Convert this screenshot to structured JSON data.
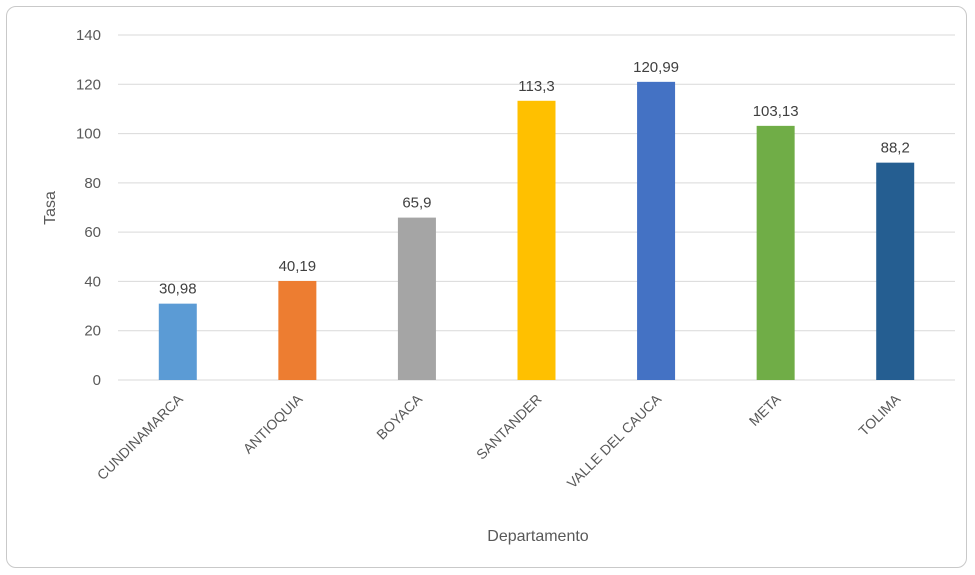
{
  "chart_data": {
    "type": "bar",
    "categories": [
      "CUNDINAMARCA",
      "ANTIOQUIA",
      "BOYACA",
      "SANTANDER",
      "VALLE DEL CAUCA",
      "META",
      "TOLIMA"
    ],
    "values": [
      30.98,
      40.19,
      65.9,
      113.3,
      120.99,
      103.13,
      88.2
    ],
    "data_labels": [
      "30,98",
      "40,19",
      "65,9",
      "113,3",
      "120,99",
      "103,13",
      "88,2"
    ],
    "bar_colors": [
      "#5b9bd5",
      "#ed7d31",
      "#a5a5a5",
      "#ffc000",
      "#4472c4",
      "#70ad47",
      "#255e91"
    ],
    "title": "",
    "xlabel": "Departamento",
    "ylabel": "Tasa",
    "ylim": [
      0,
      140
    ],
    "yticks": [
      0,
      20,
      40,
      60,
      80,
      100,
      120,
      140
    ],
    "grid": true,
    "legend": "none"
  }
}
